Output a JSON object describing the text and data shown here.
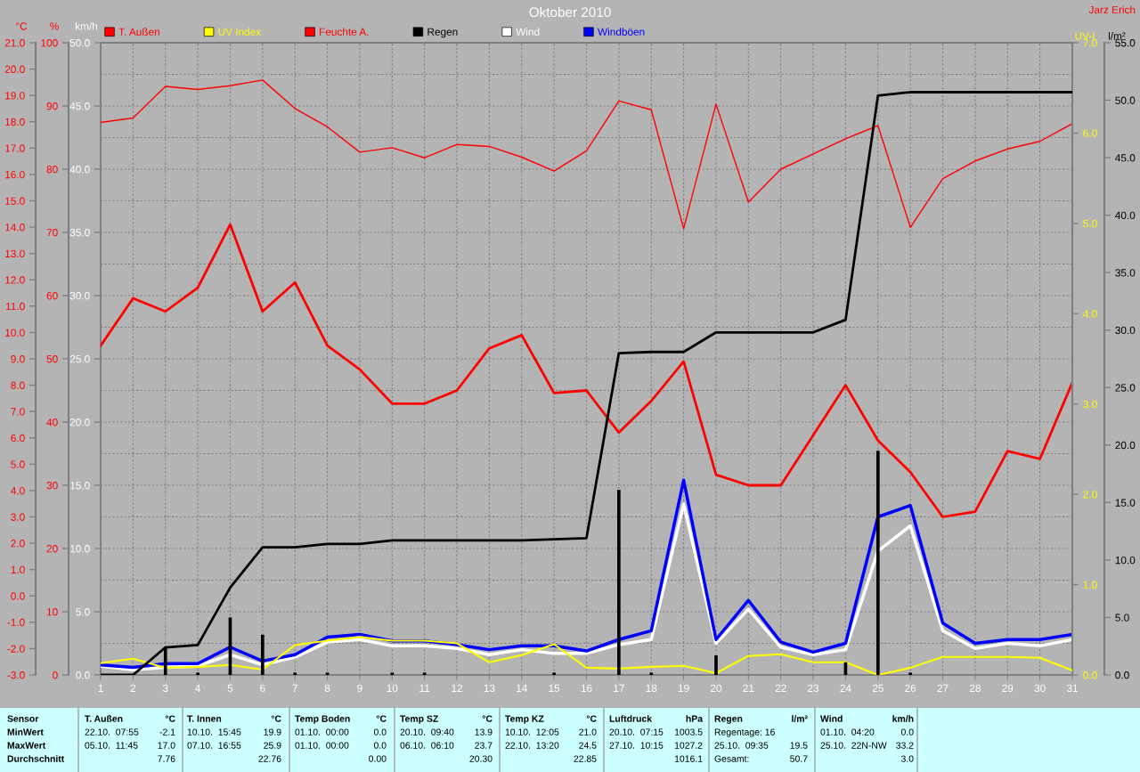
{
  "chart_data": [
    {
      "type": "line",
      "title": "Oktober 2010",
      "categories": [
        "1",
        "2",
        "3",
        "4",
        "5",
        "6",
        "7",
        "8",
        "9",
        "10",
        "11",
        "12",
        "13",
        "14",
        "15",
        "16",
        "17",
        "18",
        "19",
        "20",
        "21",
        "22",
        "23",
        "24",
        "25",
        "26",
        "27",
        "28",
        "29",
        "30",
        "31"
      ],
      "series": [
        {
          "name": "T. Außen",
          "color": "#ff0000",
          "values": [
            9.5,
            11.3,
            10.8,
            11.7,
            14.1,
            10.8,
            11.9,
            9.5,
            8.6,
            7.3,
            7.3,
            7.8,
            9.4,
            9.9,
            7.7,
            7.8,
            6.2,
            7.4,
            8.9,
            4.6,
            4.2,
            4.2,
            6.1,
            8.0,
            5.9,
            4.7,
            3.0,
            3.2,
            5.5,
            5.2,
            8.1
          ]
        },
        {
          "name": "Feuchte A.",
          "color": "#ff0000",
          "axis": "y2",
          "values": [
            87.4,
            88.1,
            93.1,
            92.6,
            93.2,
            94.1,
            89.6,
            86.7,
            82.7,
            83.4,
            81.8,
            83.9,
            83.6,
            81.9,
            79.7,
            82.9,
            90.8,
            89.4,
            70.6,
            90.3,
            74.8,
            80.0,
            82.4,
            84.8,
            86.9,
            70.8,
            78.5,
            81.3,
            83.2,
            84.4,
            87.2
          ]
        },
        {
          "name": "Wind",
          "color": "#ffffff",
          "axis": "y3",
          "values": [
            0.7,
            0.4,
            0.6,
            0.7,
            1.6,
            0.8,
            1.4,
            2.6,
            2.8,
            2.3,
            2.3,
            2.1,
            1.6,
            2.0,
            1.7,
            1.7,
            2.4,
            2.8,
            13.5,
            2.5,
            5.2,
            2.2,
            1.6,
            2.0,
            9.8,
            11.8,
            3.5,
            2.1,
            2.5,
            2.3,
            2.8
          ]
        },
        {
          "name": "Windböen",
          "color": "#0000ff",
          "axis": "y3",
          "values": [
            0.8,
            0.6,
            0.9,
            0.9,
            2.2,
            1.1,
            1.6,
            3.0,
            3.2,
            2.7,
            2.7,
            2.4,
            2.0,
            2.3,
            2.3,
            1.9,
            2.8,
            3.5,
            15.4,
            2.8,
            5.9,
            2.6,
            1.8,
            2.5,
            12.5,
            13.4,
            4.1,
            2.5,
            2.8,
            2.8,
            3.2
          ]
        }
      ],
      "ylabel": "°C",
      "ylim": [
        -3,
        21
      ],
      "yticks": [
        {
          "value": -3,
          "label": "-3.0"
        },
        {
          "value": -2,
          "label": "-2.0"
        },
        {
          "value": -1,
          "label": "-1.0"
        },
        {
          "value": 0,
          "label": "0.0"
        },
        {
          "value": 1,
          "label": "1.0"
        },
        {
          "value": 2,
          "label": "2.0"
        },
        {
          "value": 3,
          "label": "3.0"
        },
        {
          "value": 4,
          "label": "4.0"
        },
        {
          "value": 5,
          "label": "5.0"
        },
        {
          "value": 6,
          "label": "6.0"
        },
        {
          "value": 7,
          "label": "7.0"
        },
        {
          "value": 8,
          "label": "8.0"
        },
        {
          "value": 9,
          "label": "9.0"
        },
        {
          "value": 10,
          "label": "10.0"
        },
        {
          "value": 11,
          "label": "11.0"
        },
        {
          "value": 12,
          "label": "12.0"
        },
        {
          "value": 13,
          "label": "13.0"
        },
        {
          "value": 14,
          "label": "14.0"
        },
        {
          "value": 15,
          "label": "15.0"
        },
        {
          "value": 16,
          "label": "16.0"
        },
        {
          "value": 17,
          "label": "17.0"
        },
        {
          "value": 18,
          "label": "18.0"
        },
        {
          "value": 19,
          "label": "19.0"
        },
        {
          "value": 20,
          "label": "20.0"
        },
        {
          "value": 21,
          "label": "21.0"
        }
      ],
      "y2label": "%",
      "y2lim": [
        0,
        100
      ],
      "y2ticks": [
        0,
        10,
        20,
        30,
        40,
        50,
        60,
        70,
        80,
        90,
        100
      ],
      "y3label": "km/h",
      "y3lim": [
        0,
        50
      ],
      "y3ticks": [
        {
          "value": 0,
          "label": "0.0"
        },
        {
          "value": 5,
          "label": "5.0"
        },
        {
          "value": 10,
          "label": "10.0"
        },
        {
          "value": 15,
          "label": "15.0"
        },
        {
          "value": 20,
          "label": "20.0"
        },
        {
          "value": 25,
          "label": "25.0"
        },
        {
          "value": 30,
          "label": "30.0"
        },
        {
          "value": 35,
          "label": "35.0"
        },
        {
          "value": 40,
          "label": "40.0"
        },
        {
          "value": 45,
          "label": "45.0"
        },
        {
          "value": 50,
          "label": "50.0"
        }
      ],
      "grid": true,
      "legend": "top",
      "line_style": "solid",
      "annotations": [
        "Jarz Erich",
        "Sensor",
        "MinWert",
        "MaxWert",
        "Durchschnitt",
        "T. Außen",
        "°C",
        "22.10.  07:55",
        "-2.1",
        "05.10.  11:45",
        "17.0",
        "7.76",
        "T. Innen",
        "°C",
        "10.10.  15:45",
        "19.9",
        "07.10.  16:55",
        "25.9",
        "22.76",
        "Temp Boden",
        "°C",
        "01.10.  00:00",
        "0.0",
        "01.10.  00:00",
        "0.0",
        "0.00",
        "Temp SZ",
        "°C",
        "20.10.  09:40",
        "13.9",
        "06.10.  06:10",
        "23.7",
        "20.30",
        "Temp KZ",
        "°C",
        "10.10.  12:05",
        "21.0",
        "22.10.  13:20",
        "24.5",
        "22.85",
        "Luftdruck",
        "hPa",
        "20.10.  07:15",
        "1003.5",
        "27.10.  10:15",
        "1027.2",
        "1016.1",
        "Regen",
        "l/m²",
        "Regentage: 16",
        "25.10.  09:35",
        "19.5",
        "Gesamt:",
        "50.7",
        "Wind",
        "km/h",
        "01.10.  04:20",
        "0.0",
        "25.10.  22N-NW",
        "33.2",
        "3.0"
      ]
    },
    {
      "type": "line",
      "tick_labels": "y",
      "categories": [
        "1",
        "2",
        "3",
        "4",
        "5",
        "6",
        "7",
        "8",
        "9",
        "10",
        "11",
        "12",
        "13",
        "14",
        "15",
        "16",
        "17",
        "18",
        "19",
        "20",
        "21",
        "22",
        "23",
        "24",
        "25",
        "26",
        "27",
        "28",
        "29",
        "30",
        "31"
      ],
      "series": [
        {
          "name": "UV Index",
          "color": "#ffff00",
          "values": [
            0.13,
            0.18,
            0.08,
            0.09,
            0.11,
            0.06,
            0.33,
            0.38,
            0.42,
            0.38,
            0.38,
            0.35,
            0.14,
            0.22,
            0.34,
            0.08,
            0.07,
            0.09,
            0.1,
            0.02,
            0.21,
            0.23,
            0.14,
            0.14,
            0.0,
            0.08,
            0.2,
            0.2,
            0.2,
            0.19,
            0.05
          ]
        },
        {
          "name": "Regen",
          "color": "#000000",
          "axis": "y2",
          "values": [
            0.0,
            0.0,
            2.4,
            2.6,
            7.6,
            11.1,
            11.1,
            11.4,
            11.4,
            11.7,
            11.7,
            11.7,
            11.7,
            11.7,
            11.8,
            11.9,
            28.0,
            28.1,
            28.1,
            29.8,
            29.8,
            29.8,
            29.8,
            30.9,
            50.4,
            50.7,
            50.7,
            50.7,
            50.7,
            50.7,
            50.7
          ]
        },
        {
          "type": "bar",
          "color": "#000000",
          "axis": "y2",
          "values": [
            0.0,
            0.0,
            2.4,
            0.2,
            5.0,
            3.5,
            0.2,
            0.2,
            0.0,
            0.2,
            0.2,
            0.0,
            0.0,
            0.0,
            0.2,
            0.0,
            16.1,
            0.2,
            0.0,
            1.7,
            0.0,
            0.0,
            0.0,
            1.1,
            19.5,
            0.2,
            0.0,
            0.0,
            0.0,
            0.0,
            0.0
          ]
        }
      ],
      "ylabel": "UV-I",
      "ylim": [
        0,
        7
      ],
      "yticks": [
        {
          "value": 0,
          "label": "0.0"
        },
        {
          "value": 1,
          "label": "1.0"
        },
        {
          "value": 2,
          "label": "2.0"
        },
        {
          "value": 3,
          "label": "3.0"
        },
        {
          "value": 4,
          "label": "4.0"
        },
        {
          "value": 5,
          "label": "5.0"
        },
        {
          "value": 6,
          "label": "6.0"
        },
        {
          "value": 7,
          "label": "7.0"
        }
      ],
      "y2label": "l/m²",
      "y2lim": [
        0,
        55
      ],
      "y2ticks": [
        {
          "value": 0,
          "label": "0.0"
        },
        {
          "value": 5,
          "label": "5.0"
        },
        {
          "value": 10,
          "label": "10.0"
        },
        {
          "value": 15,
          "label": "15.0"
        },
        {
          "value": 20,
          "label": "20.0"
        },
        {
          "value": 25,
          "label": "25.0"
        },
        {
          "value": 30,
          "label": "30.0"
        },
        {
          "value": 35,
          "label": "35.0"
        },
        {
          "value": 40,
          "label": "40.0"
        },
        {
          "value": 45,
          "label": "45.0"
        },
        {
          "value": 50,
          "label": "50.0"
        },
        {
          "value": 55,
          "label": "55.0"
        }
      ],
      "legend": "top",
      "line_style": "solid"
    }
  ]
}
